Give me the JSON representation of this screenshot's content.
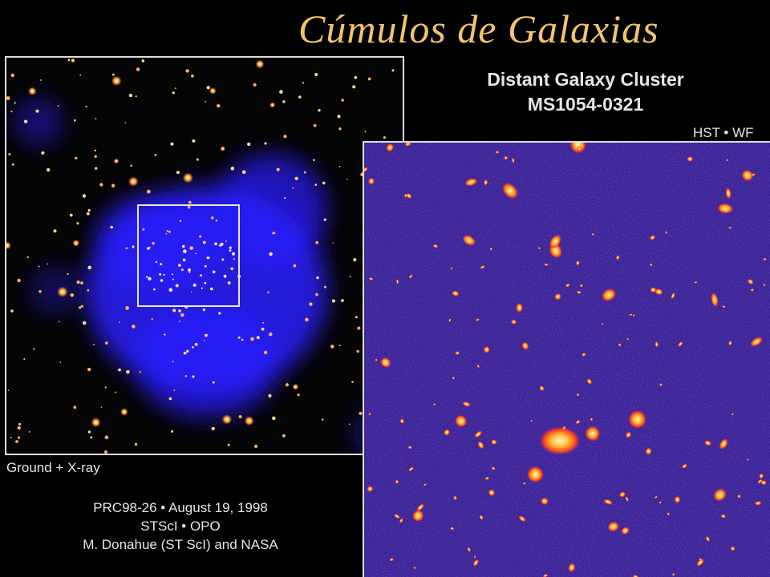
{
  "slide": {
    "title": "Cúmulos de Galaxias"
  },
  "figure": {
    "heading_line1": "Distant Galaxy Cluster",
    "heading_line2": "MS1054-0321",
    "instrument_label": "HST • WF",
    "left_panel_label": "Ground + X-ray",
    "credit_line1": "PRC98-26 • August 19, 1998",
    "credit_line2": "STScI • OPO",
    "credit_line3": "M. Donahue (ST ScI) and NASA"
  },
  "colors": {
    "title": "#f4c46a",
    "text": "#e6e6e6",
    "xray_glow": "#2a1cff",
    "hst_background": "#1e0a7a",
    "galaxy_core": "#fff3b0",
    "galaxy_halo": "#ff6a1a"
  }
}
